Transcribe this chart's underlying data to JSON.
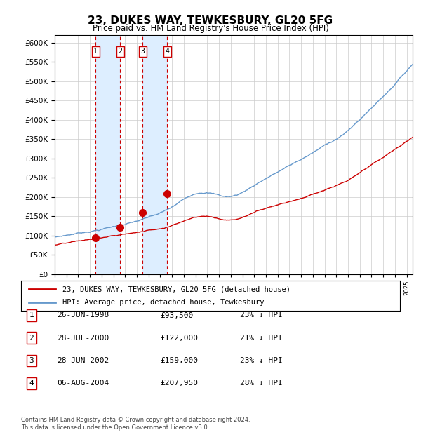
{
  "title": "23, DUKES WAY, TEWKESBURY, GL20 5FG",
  "subtitle": "Price paid vs. HM Land Registry's House Price Index (HPI)",
  "ylabel_ticks": [
    "£0",
    "£50K",
    "£100K",
    "£150K",
    "£200K",
    "£250K",
    "£300K",
    "£350K",
    "£400K",
    "£450K",
    "£500K",
    "£550K",
    "£600K"
  ],
  "ytick_values": [
    0,
    50000,
    100000,
    150000,
    200000,
    250000,
    300000,
    350000,
    400000,
    450000,
    500000,
    550000,
    600000
  ],
  "ylim": [
    0,
    620000
  ],
  "xlim_start": 1995.0,
  "xlim_end": 2025.5,
  "sale_dates": [
    1998.486,
    2000.572,
    2002.486,
    2004.597
  ],
  "sale_prices": [
    93500,
    122000,
    159000,
    207950
  ],
  "sale_labels": [
    "1",
    "2",
    "3",
    "4"
  ],
  "legend_red": "23, DUKES WAY, TEWKESBURY, GL20 5FG (detached house)",
  "legend_blue": "HPI: Average price, detached house, Tewkesbury",
  "table_rows": [
    [
      "1",
      "26-JUN-1998",
      "£93,500",
      "23% ↓ HPI"
    ],
    [
      "2",
      "28-JUL-2000",
      "£122,000",
      "21% ↓ HPI"
    ],
    [
      "3",
      "28-JUN-2002",
      "£159,000",
      "23% ↓ HPI"
    ],
    [
      "4",
      "06-AUG-2004",
      "£207,950",
      "28% ↓ HPI"
    ]
  ],
  "footnote": "Contains HM Land Registry data © Crown copyright and database right 2024.\nThis data is licensed under the Open Government Licence v3.0.",
  "red_color": "#cc0000",
  "blue_color": "#6699cc",
  "bg_color": "#ffffff",
  "grid_color": "#cccccc",
  "shade_color": "#ddeeff"
}
